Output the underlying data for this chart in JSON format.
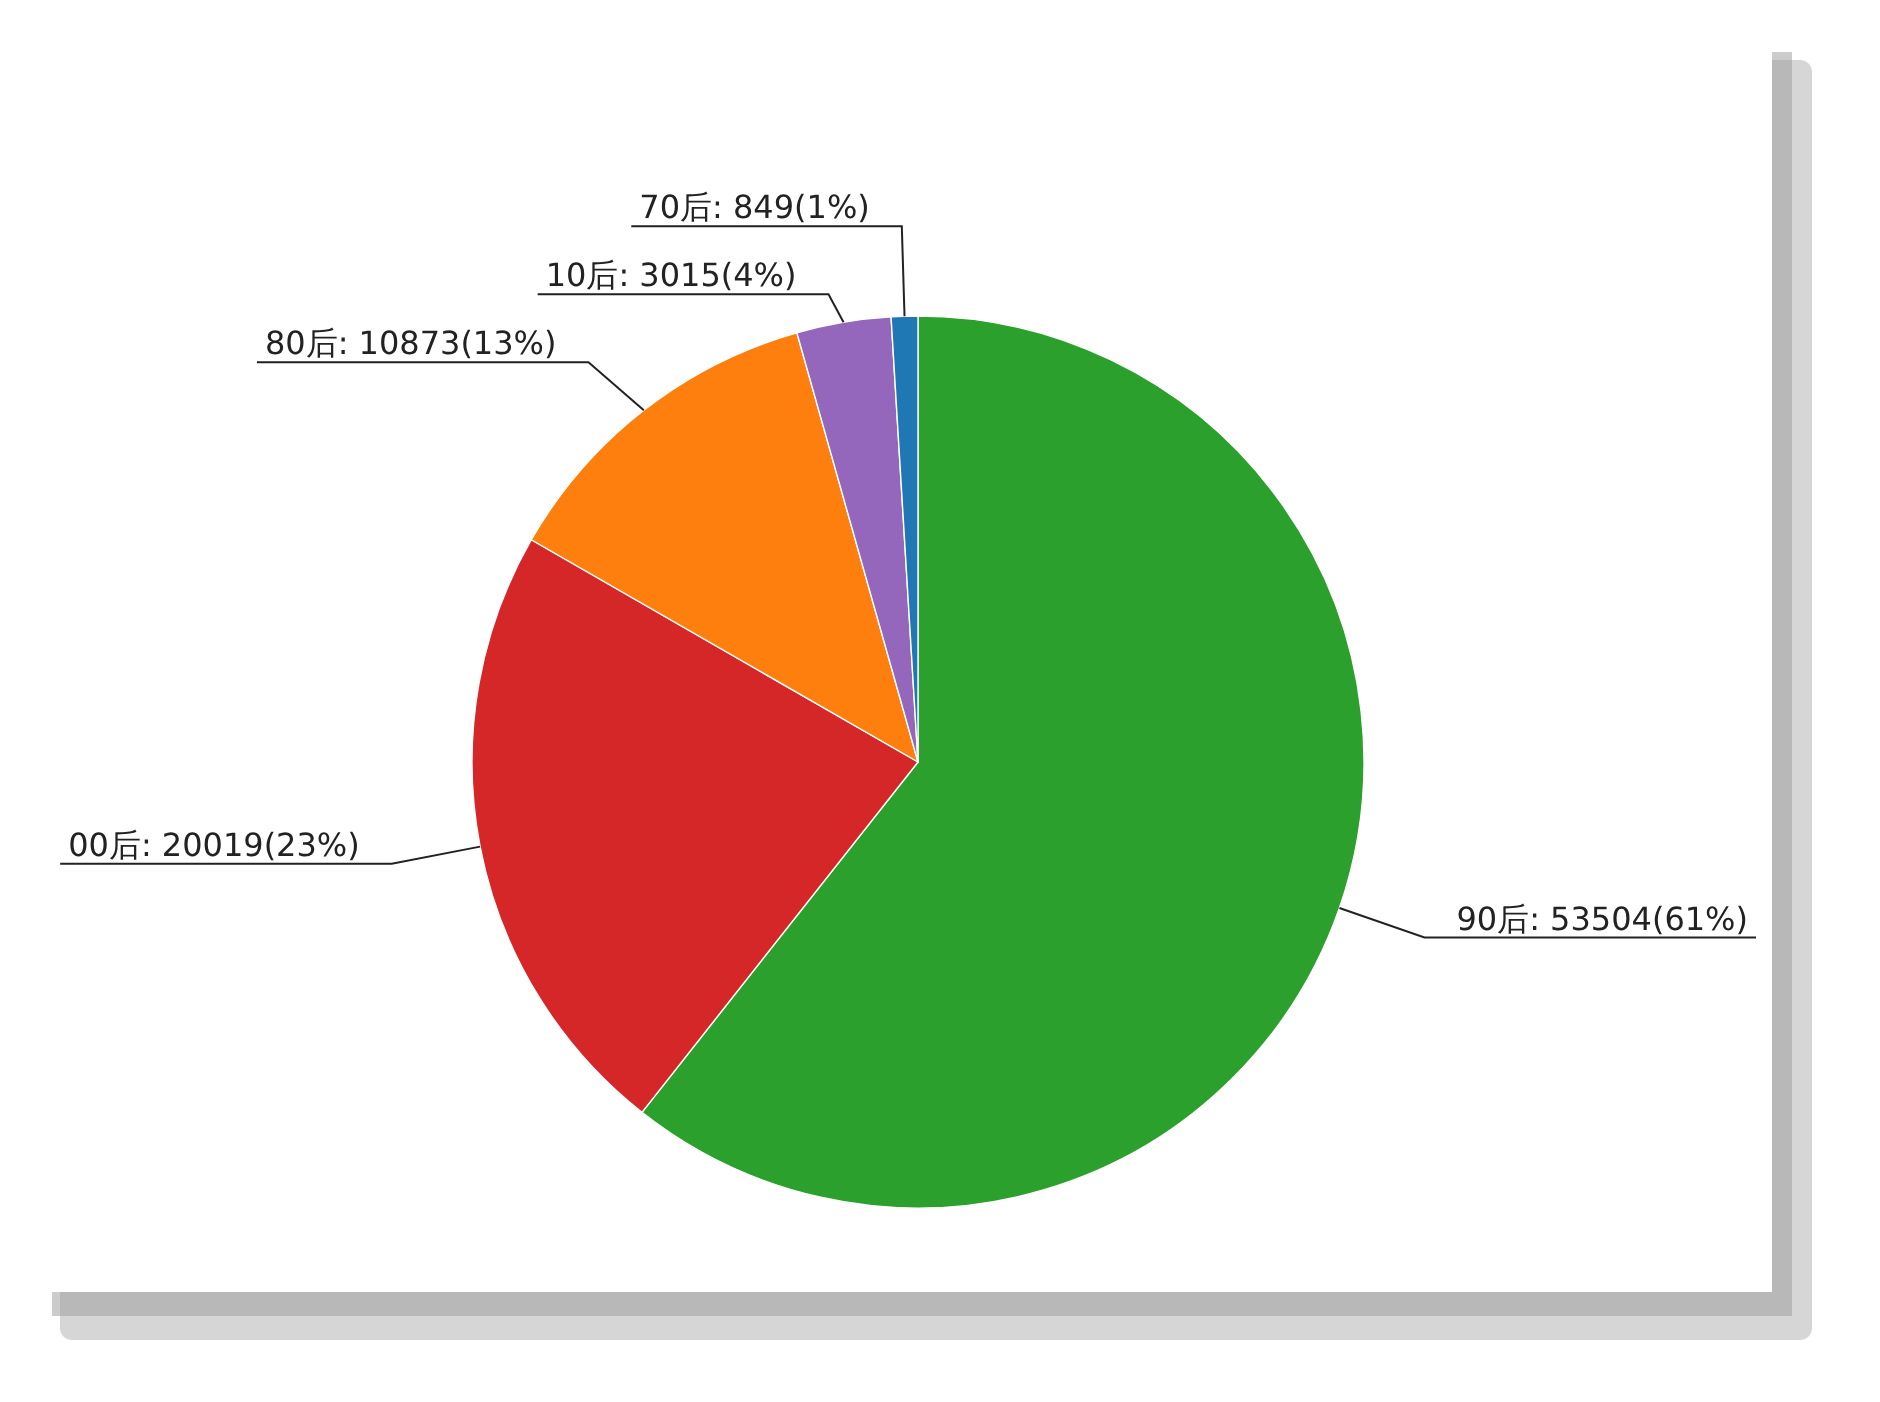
{
  "chart_data": {
    "type": "pie",
    "categories": [
      "90后",
      "00后",
      "80后",
      "10后",
      "70后"
    ],
    "values": [
      53504,
      20019,
      10873,
      3015,
      849
    ],
    "value_labels": [
      "53504(61%)",
      "20019(23%)",
      "10873(13%)",
      "3015(4%)",
      "849(1%)"
    ],
    "colors": [
      "#2ca02c",
      "#d62728",
      "#ff7f0e",
      "#9467bd",
      "#1f77b4"
    ]
  }
}
